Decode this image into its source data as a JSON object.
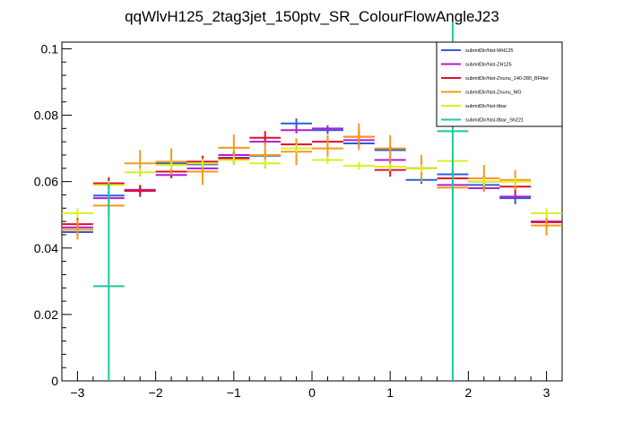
{
  "chart_data": {
    "type": "scatter",
    "title": "qqWlvH125_2tag3jet_150ptv_SR_ColourFlowAngleJ23",
    "xlabel": "",
    "ylabel": "",
    "xlim": [
      -3.2,
      3.2
    ],
    "ylim": [
      0,
      0.102
    ],
    "x_ticks": [
      -3,
      -2,
      -1,
      0,
      1,
      2,
      3
    ],
    "x_tick_labels": [
      "−3",
      "−2",
      "−1",
      "0",
      "1",
      "2",
      "3"
    ],
    "y_ticks": [
      0,
      0.02,
      0.04,
      0.06,
      0.08,
      0.1
    ],
    "y_tick_labels": [
      "0",
      "0.02",
      "0.04",
      "0.06",
      "0.08",
      "0.1"
    ],
    "bin_edges": [
      -3.2,
      -2.8,
      -2.4,
      -2.0,
      -1.6,
      -1.2,
      -0.8,
      -0.4,
      0.0,
      0.4,
      0.8,
      1.2,
      1.6,
      2.0,
      2.4,
      2.8,
      3.2
    ],
    "grid": false,
    "legend_position": "top-right",
    "series": [
      {
        "name": "submitDir/hist-WH125",
        "color": "#2c5fd6",
        "values": [
          0.0448,
          0.0558,
          0.0575,
          0.0655,
          0.0652,
          0.0672,
          0.0678,
          0.0775,
          0.0755,
          0.0715,
          0.0695,
          0.0605,
          0.0622,
          0.059,
          0.055,
          0.0478
        ],
        "errors": [
          0.0015,
          0.0012,
          0.0012,
          0.0012,
          0.0012,
          0.0012,
          0.0012,
          0.0015,
          0.0012,
          0.0012,
          0.0012,
          0.0012,
          0.0012,
          0.0012,
          0.0018,
          0.0015
        ]
      },
      {
        "name": "submitDir/hist-ZH125",
        "color": "#b21cd6",
        "values": [
          0.0462,
          0.055,
          0.0575,
          0.062,
          0.064,
          0.068,
          0.072,
          0.0755,
          0.076,
          0.0725,
          0.0665,
          0.064,
          0.059,
          0.058,
          0.0555,
          0.048
        ],
        "errors": [
          0.0012,
          0.001,
          0.001,
          0.001,
          0.001,
          0.001,
          0.001,
          0.001,
          0.001,
          0.001,
          0.001,
          0.001,
          0.001,
          0.001,
          0.001,
          0.0012
        ]
      },
      {
        "name": "submitDir/hist-Znunu_140-280_BFilter",
        "color": "#e0102a",
        "values": [
          0.0472,
          0.0595,
          0.0572,
          0.063,
          0.066,
          0.067,
          0.0732,
          0.0712,
          0.072,
          0.0735,
          0.0635,
          0.064,
          0.061,
          0.06,
          0.0585,
          0.0478
        ],
        "errors": [
          0.002,
          0.0018,
          0.0018,
          0.0018,
          0.0018,
          0.0018,
          0.002,
          0.0018,
          0.0018,
          0.002,
          0.002,
          0.0018,
          0.0018,
          0.0018,
          0.0018,
          0.002
        ]
      },
      {
        "name": "submitDir/hist-Znunu_MG",
        "color": "#f59a1a",
        "values": [
          0.0455,
          0.0528,
          0.0655,
          0.066,
          0.063,
          0.0702,
          0.068,
          0.069,
          0.07,
          0.0735,
          0.07,
          0.064,
          0.0582,
          0.061,
          0.0605,
          0.0468
        ],
        "errors": [
          0.003,
          0.003,
          0.004,
          0.004,
          0.004,
          0.004,
          0.004,
          0.004,
          0.004,
          0.004,
          0.004,
          0.004,
          0.004,
          0.004,
          0.003,
          0.003
        ]
      },
      {
        "name": "submitDir/hist-ttbar",
        "color": "#d8f020",
        "values": [
          0.0505,
          0.059,
          0.0628,
          0.065,
          0.0655,
          0.0665,
          0.0655,
          0.07,
          0.0665,
          0.0648,
          0.0645,
          0.064,
          0.0662,
          0.06,
          0.06,
          0.0505
        ],
        "errors": [
          0.0015,
          0.0012,
          0.0012,
          0.0012,
          0.0012,
          0.0012,
          0.0012,
          0.0012,
          0.0012,
          0.0012,
          0.0012,
          0.0012,
          0.0012,
          0.0012,
          0.0012,
          0.0015
        ]
      },
      {
        "name": "submitDir/hist-ttbar_Sh221",
        "color": "#1ec8a0",
        "points": [
          {
            "x": -2.6,
            "value": 0.0285,
            "error_up": 0.031,
            "error_down": 0.0285
          },
          {
            "x": 1.8,
            "value": 0.0752,
            "error_up": 0.033,
            "error_down": 0.0752
          }
        ]
      }
    ]
  }
}
